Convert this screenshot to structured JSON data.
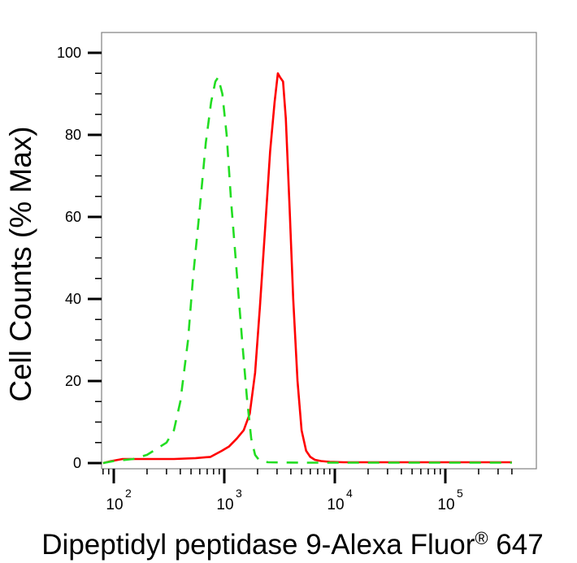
{
  "chart_data": {
    "type": "line",
    "title": "",
    "xlabel": "Dipeptidyl peptidase 9-Alexa Fluor",
    "xlabel_superscript": "®",
    "xlabel_suffix": " 647",
    "ylabel": "Cell Counts (% Max)",
    "x_scale": "log",
    "xlim": [
      80,
      400000
    ],
    "ylim": [
      -2,
      105
    ],
    "y_ticks": [
      {
        "value": 0,
        "label": "0"
      },
      {
        "value": 20,
        "label": "20"
      },
      {
        "value": 40,
        "label": "40"
      },
      {
        "value": 60,
        "label": "60"
      },
      {
        "value": 80,
        "label": "80"
      },
      {
        "value": 100,
        "label": "100"
      }
    ],
    "x_ticks": [
      {
        "value": 100,
        "base": "10",
        "exp": "2"
      },
      {
        "value": 1000,
        "base": "10",
        "exp": "3"
      },
      {
        "value": 10000,
        "base": "10",
        "exp": "4"
      },
      {
        "value": 100000,
        "base": "10",
        "exp": "5"
      }
    ],
    "grid": false,
    "legend": false,
    "series": [
      {
        "color": "#ff0000",
        "dash": "solid",
        "points": [
          [
            80,
            0
          ],
          [
            95,
            0.5
          ],
          [
            120,
            1
          ],
          [
            200,
            1
          ],
          [
            350,
            1
          ],
          [
            550,
            1.2
          ],
          [
            750,
            1.5
          ],
          [
            950,
            3
          ],
          [
            1100,
            4
          ],
          [
            1300,
            6
          ],
          [
            1500,
            8
          ],
          [
            1700,
            12
          ],
          [
            1900,
            22
          ],
          [
            2100,
            38
          ],
          [
            2350,
            58
          ],
          [
            2600,
            76
          ],
          [
            2850,
            88
          ],
          [
            3050,
            95
          ],
          [
            3200,
            94
          ],
          [
            3400,
            93
          ],
          [
            3600,
            84
          ],
          [
            3900,
            62
          ],
          [
            4200,
            40
          ],
          [
            4600,
            20
          ],
          [
            5000,
            8
          ],
          [
            5500,
            3
          ],
          [
            6000,
            1.5
          ],
          [
            6600,
            0.8
          ],
          [
            7500,
            0.5
          ],
          [
            9000,
            0.3
          ],
          [
            12000,
            0.2
          ],
          [
            30000,
            0.2
          ],
          [
            100000,
            0.2
          ],
          [
            400000,
            0.2
          ]
        ]
      },
      {
        "color": "#22dd22",
        "dash": "dashed",
        "points": [
          [
            80,
            0
          ],
          [
            100,
            0.5
          ],
          [
            150,
            1
          ],
          [
            200,
            2
          ],
          [
            300,
            5
          ],
          [
            350,
            8
          ],
          [
            400,
            15
          ],
          [
            470,
            30
          ],
          [
            520,
            45
          ],
          [
            600,
            62
          ],
          [
            680,
            78
          ],
          [
            760,
            88
          ],
          [
            830,
            93
          ],
          [
            880,
            94
          ],
          [
            960,
            90
          ],
          [
            1050,
            80
          ],
          [
            1150,
            64
          ],
          [
            1300,
            46
          ],
          [
            1450,
            30
          ],
          [
            1600,
            16
          ],
          [
            1750,
            6
          ],
          [
            1900,
            2
          ],
          [
            2100,
            0.5
          ],
          [
            2500,
            0.2
          ],
          [
            5000,
            0.1
          ],
          [
            20000,
            0.1
          ],
          [
            100000,
            0.1
          ],
          [
            400000,
            0.1
          ]
        ]
      }
    ]
  }
}
